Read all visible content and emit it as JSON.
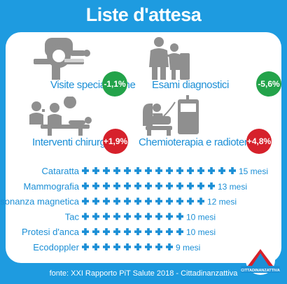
{
  "title": "Liste d'attesa",
  "colors": {
    "background": "#1e9be0",
    "text_blue": "#1b8fd6",
    "icon_grey": "#8f8f8f",
    "decrease_green": "#23a34a",
    "increase_red": "#d6212b"
  },
  "categories": [
    {
      "label": "Visite specialistiche",
      "change": "-1,1%",
      "trend": "decrease",
      "icon": "mri-scanner-icon"
    },
    {
      "label": "Esami diagnostici",
      "change": "-5,6%",
      "trend": "decrease",
      "icon": "doctor-patient-exam-icon"
    },
    {
      "label": "Interventi chirurgici",
      "change": "+1,9%",
      "trend": "increase",
      "icon": "surgery-icon"
    },
    {
      "label": "Chemioterapia e radioterapia",
      "change": "+4,8%",
      "trend": "increase",
      "icon": "chemotherapy-chair-icon"
    }
  ],
  "chart_data": {
    "type": "bar",
    "title": "",
    "unit": "mesi",
    "categories": [
      "Cataratta",
      "Mammografia",
      "Risonanza magnetica",
      "Tac",
      "Protesi d'anca",
      "Ecodoppler"
    ],
    "values": [
      15,
      13,
      12,
      10,
      10,
      9
    ],
    "value_labels": [
      "15 mesi",
      "13 mesi",
      "12 mesi",
      "10 mesi",
      "10 mesi",
      "9 mesi"
    ],
    "mark": "plus-cross-per-month",
    "xlabel": "",
    "ylabel": ""
  },
  "footer": "fonte: XXI Rapporto PiT Salute 2018 - Cittadinanzattiva",
  "logo": {
    "name": "cittadinanzattiva-logo",
    "text": "CITTADINANZATTIVA"
  }
}
